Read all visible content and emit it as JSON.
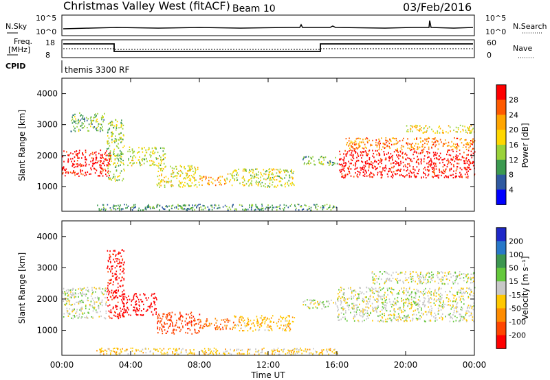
{
  "header": {
    "title": "Christmas Valley West (fitACF)",
    "beam": "Beam 10",
    "date": "03/Feb/2016"
  },
  "panels": {
    "nsky": {
      "label": "N.Sky",
      "right_label": "N.Search",
      "ticks_left": [
        "10^5",
        "10^0"
      ],
      "ticks_right": [
        "10^5",
        "10^0"
      ]
    },
    "freq": {
      "label_line1": "Freq.",
      "label_line2": "[MHz]",
      "right_label": "Nave",
      "ticks_left": [
        "18",
        "8"
      ],
      "ticks_right": [
        "60",
        "0"
      ]
    },
    "cpid": {
      "label": "CPID",
      "value": "themis 3300 RF"
    }
  },
  "power_panel": {
    "ylabel": "Slant Range [km]",
    "colorbar_label": "Power [dB]",
    "colorbar_ticks": [
      "28",
      "24",
      "20",
      "16",
      "12",
      "8",
      "4"
    ],
    "colors": [
      "#ff0000",
      "#ff5a00",
      "#ffa500",
      "#ffd700",
      "#9ad23a",
      "#3c9a50",
      "#2f5aa0",
      "#0000ff"
    ]
  },
  "velocity_panel": {
    "ylabel": "Slant Range [km]",
    "colorbar_label": "Velocity [m s⁻¹]",
    "colorbar_ticks": [
      "200",
      "100",
      "50",
      "15",
      "-15",
      "-50",
      "-100",
      "-200"
    ],
    "colors": [
      "#1e28c8",
      "#2878c8",
      "#3c9650",
      "#64c83c",
      "#c8c8c8",
      "#ffc800",
      "#ff8c00",
      "#ff4600",
      "#ff0000"
    ]
  },
  "xaxis": {
    "label": "Time UT",
    "ticks": [
      "00:00",
      "04:00",
      "08:00",
      "12:00",
      "16:00",
      "20:00",
      "00:00"
    ]
  },
  "chart_data": [
    {
      "type": "heatmap",
      "title": "Power",
      "xlabel": "Time UT",
      "ylabel": "Slant Range [km]",
      "xlim": [
        0,
        24
      ],
      "ylim": [
        200,
        4500
      ],
      "yticks": [
        1000,
        2000,
        3000,
        4000
      ],
      "colorbar": {
        "label": "Power [dB]",
        "range": [
          0,
          30
        ]
      },
      "blobs": [
        {
          "t0": 0.0,
          "t1": 2.8,
          "r0": 1350,
          "r1": 2200,
          "v": 29
        },
        {
          "t0": 0.5,
          "t1": 2.5,
          "r0": 2800,
          "r1": 3400,
          "v": 10
        },
        {
          "t0": 2.6,
          "t1": 3.6,
          "r0": 1200,
          "r1": 3200,
          "v": 12
        },
        {
          "t0": 3.8,
          "t1": 6.0,
          "r0": 1700,
          "r1": 2300,
          "v": 14
        },
        {
          "t0": 5.5,
          "t1": 8.0,
          "r0": 1000,
          "r1": 1700,
          "v": 15
        },
        {
          "t0": 8.0,
          "t1": 9.5,
          "r0": 1050,
          "r1": 1350,
          "v": 20
        },
        {
          "t0": 9.5,
          "t1": 13.5,
          "r0": 1000,
          "r1": 1600,
          "v": 14
        },
        {
          "t0": 14.0,
          "t1": 16.0,
          "r0": 1700,
          "r1": 2000,
          "v": 10
        },
        {
          "t0": 16.1,
          "t1": 24.0,
          "r0": 1300,
          "r1": 2200,
          "v": 29
        },
        {
          "t0": 16.5,
          "t1": 24.0,
          "r0": 2200,
          "r1": 2600,
          "v": 22
        },
        {
          "t0": 20.0,
          "t1": 24.0,
          "r0": 2750,
          "r1": 3000,
          "v": 16
        },
        {
          "t0": 2.0,
          "t1": 16.0,
          "r0": 250,
          "r1": 450,
          "v": 8
        }
      ]
    },
    {
      "type": "heatmap",
      "title": "Velocity",
      "xlabel": "Time UT",
      "ylabel": "Slant Range [km]",
      "xlim": [
        0,
        24
      ],
      "ylim": [
        200,
        4500
      ],
      "yticks": [
        1000,
        2000,
        3000,
        4000
      ],
      "colorbar": {
        "label": "Velocity [m s⁻¹]",
        "range": [
          -250,
          250
        ]
      },
      "blobs": [
        {
          "t0": 0.0,
          "t1": 2.6,
          "r0": 1400,
          "r1": 2400,
          "v": 0
        },
        {
          "t0": 2.6,
          "t1": 3.6,
          "r0": 1400,
          "r1": 3600,
          "v": -220
        },
        {
          "t0": 3.5,
          "t1": 5.5,
          "r0": 1500,
          "r1": 2200,
          "v": -230
        },
        {
          "t0": 5.5,
          "t1": 8.0,
          "r0": 900,
          "r1": 1600,
          "v": -180
        },
        {
          "t0": 8.0,
          "t1": 10.0,
          "r0": 1050,
          "r1": 1400,
          "v": -100
        },
        {
          "t0": 10.0,
          "t1": 13.5,
          "r0": 1000,
          "r1": 1500,
          "v": -40
        },
        {
          "t0": 14.0,
          "t1": 16.0,
          "r0": 1700,
          "r1": 2000,
          "v": 0
        },
        {
          "t0": 16.0,
          "t1": 24.0,
          "r0": 1300,
          "r1": 2400,
          "v": 0
        },
        {
          "t0": 18.0,
          "t1": 24.0,
          "r0": 2500,
          "r1": 2900,
          "v": 0
        },
        {
          "t0": 2.0,
          "t1": 16.0,
          "r0": 250,
          "r1": 450,
          "v": -30
        }
      ]
    }
  ]
}
